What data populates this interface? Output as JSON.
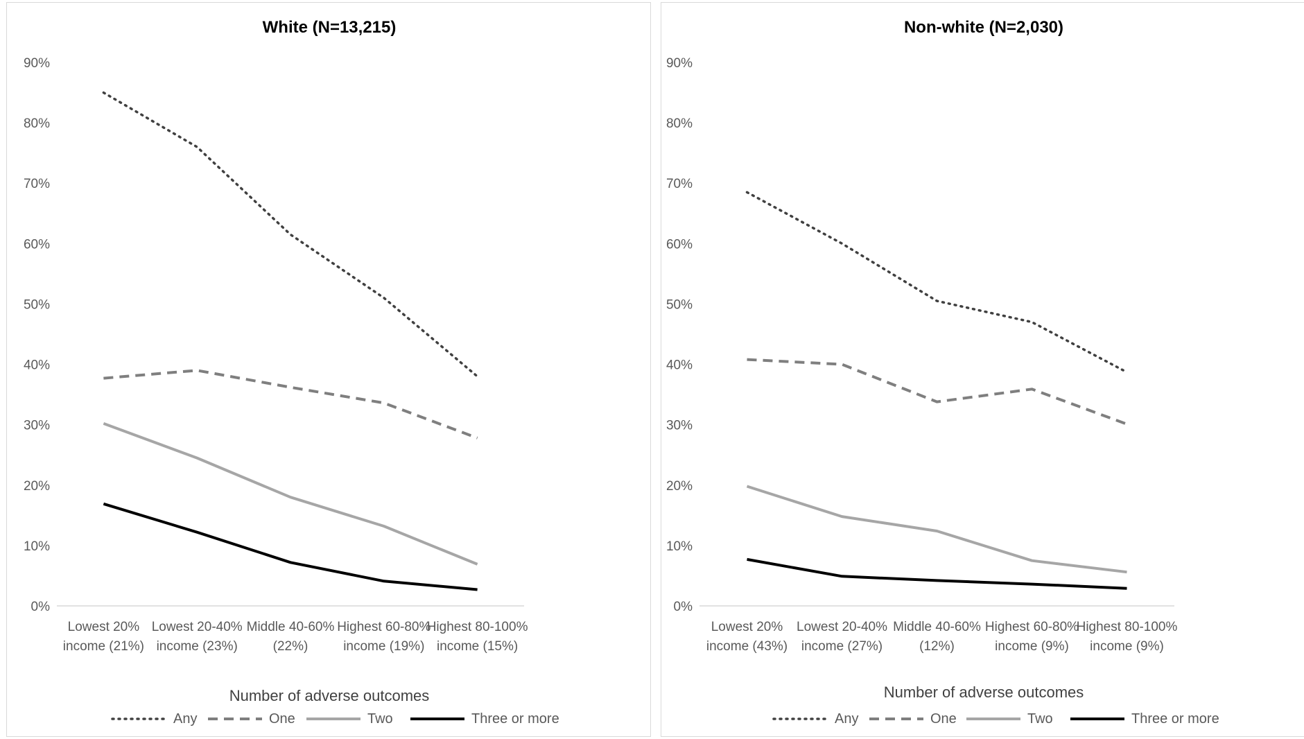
{
  "chart_data": [
    {
      "type": "line",
      "title": "White (N=13,215)",
      "categories": [
        [
          "Lowest 20%",
          "income (21%)"
        ],
        [
          "Lowest 20-40%",
          "income (23%)"
        ],
        [
          "Middle 40-60%",
          "(22%)"
        ],
        [
          "Highest 60-80%",
          "income (19%)"
        ],
        [
          "Highest 80-100%",
          "income (15%)"
        ]
      ],
      "ylim": [
        0,
        90
      ],
      "yticks": [
        "0%",
        "10%",
        "20%",
        "30%",
        "40%",
        "50%",
        "60%",
        "70%",
        "80%",
        "90%"
      ],
      "legend_title": "Number of adverse outcomes",
      "legend_position": "bottom",
      "series": [
        {
          "name": "Any",
          "values": [
            85,
            76,
            61.5,
            51,
            38
          ],
          "color": "#404040",
          "style": "dotted"
        },
        {
          "name": "One",
          "values": [
            37.7,
            39,
            36.2,
            33.6,
            27.8
          ],
          "color": "#7f7f7f",
          "style": "dashed"
        },
        {
          "name": "Two",
          "values": [
            30.2,
            24.5,
            18,
            13.2,
            6.9
          ],
          "color": "#a6a6a6",
          "style": "solid"
        },
        {
          "name": "Three or more",
          "values": [
            16.9,
            12.2,
            7.2,
            4.1,
            2.7
          ],
          "color": "#000000",
          "style": "solid"
        }
      ]
    },
    {
      "type": "line",
      "title": "Non-white (N=2,030)",
      "categories": [
        [
          "Lowest 20%",
          "income (43%)"
        ],
        [
          "Lowest 20-40%",
          "income (27%)"
        ],
        [
          "Middle 40-60%",
          "(12%)"
        ],
        [
          "Highest 60-80%",
          "income (9%)"
        ],
        [
          "Highest 80-100%",
          "income (9%)"
        ]
      ],
      "ylim": [
        0,
        90
      ],
      "yticks": [
        "0%",
        "10%",
        "20%",
        "30%",
        "40%",
        "50%",
        "60%",
        "70%",
        "80%",
        "90%"
      ],
      "legend_title": "Number of adverse outcomes",
      "legend_position": "bottom",
      "series": [
        {
          "name": "Any",
          "values": [
            68.5,
            60,
            50.5,
            47,
            38.7
          ],
          "color": "#404040",
          "style": "dotted"
        },
        {
          "name": "One",
          "values": [
            40.8,
            40,
            33.8,
            35.9,
            30.1
          ],
          "color": "#7f7f7f",
          "style": "dashed"
        },
        {
          "name": "Two",
          "values": [
            19.8,
            14.8,
            12.4,
            7.5,
            5.6
          ],
          "color": "#a6a6a6",
          "style": "solid"
        },
        {
          "name": "Three or more",
          "values": [
            7.7,
            4.9,
            4.2,
            3.6,
            2.9
          ],
          "color": "#000000",
          "style": "solid"
        }
      ]
    }
  ]
}
